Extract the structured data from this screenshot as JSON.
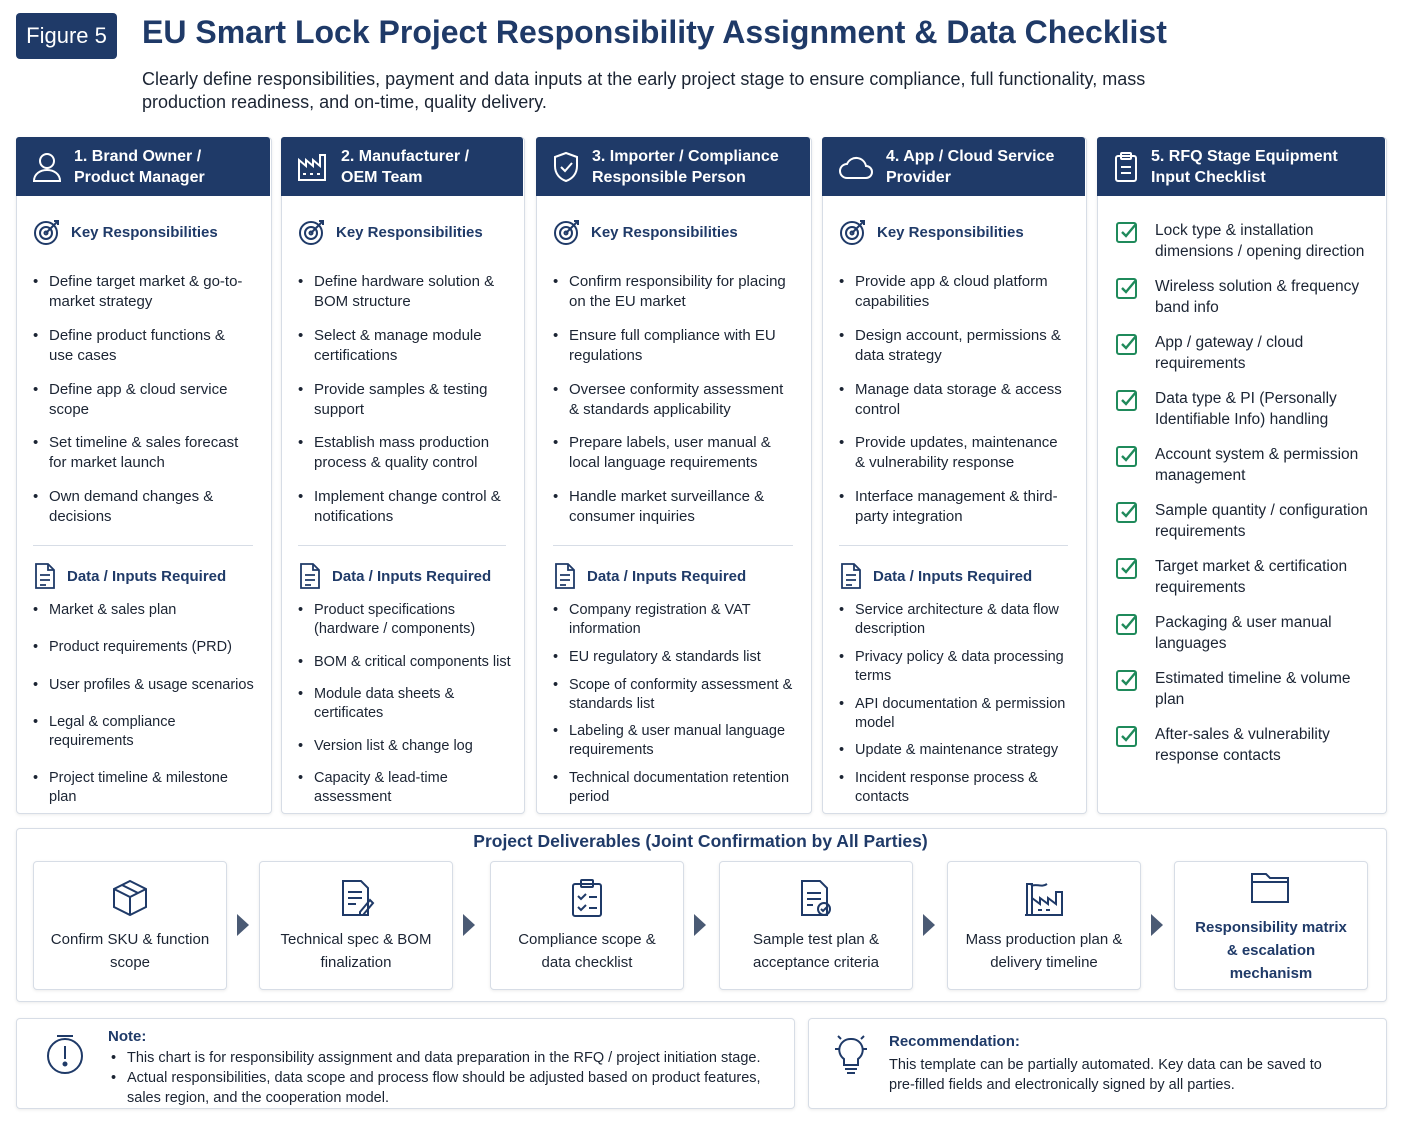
{
  "header": {
    "badge": "Figure 5",
    "title": "EU Smart Lock Project Responsibility Assignment & Data Checklist",
    "subtitle": "Clearly define responsibilities, payment and data inputs at the early project stage to ensure compliance, full functionality, mass production readiness, and on-time, quality delivery."
  },
  "columns": [
    {
      "title": "1. Brand Owner / Product Manager",
      "responsibilities_heading": "Key Responsibilities",
      "responsibilities": [
        "Define target market & go-to-market strategy",
        "Define product functions & use cases",
        "Define app & cloud service scope",
        "Set timeline & sales forecast for market launch",
        "Own demand changes & decisions"
      ],
      "data_heading": "Data / Inputs Required",
      "data": [
        "Market & sales plan",
        "Product requirements (PRD)",
        "User profiles & usage scenarios",
        "Legal & compliance requirements",
        "Project timeline & milestone plan"
      ]
    },
    {
      "title": "2. Manufacturer / OEM Team",
      "responsibilities_heading": "Key Responsibilities",
      "responsibilities": [
        "Define hardware solution & BOM structure",
        "Select & manage module certifications",
        "Provide samples & testing support",
        "Establish mass production process & quality control",
        "Implement change control & notifications"
      ],
      "data_heading": "Data / Inputs Required",
      "data": [
        "Product specifications (hardware / components)",
        "BOM & critical components list",
        "Module data sheets & certificates",
        "Version list & change log",
        "Capacity & lead-time assessment"
      ]
    },
    {
      "title": "3. Importer / Compliance Responsible Person",
      "responsibilities_heading": "Key Responsibilities",
      "responsibilities": [
        "Confirm responsibility for placing on the EU market",
        "Ensure full compliance with EU regulations",
        "Oversee conformity assessment & standards applicability",
        "Prepare labels, user manual & local language requirements",
        "Handle market surveillance & consumer inquiries"
      ],
      "data_heading": "Data / Inputs Required",
      "data": [
        "Company registration & VAT information",
        "EU regulatory & standards list",
        "Scope of conformity assessment & standards list",
        "Labeling & user manual language requirements",
        "Technical documentation retention period"
      ]
    },
    {
      "title": "4. App / Cloud Service Provider",
      "responsibilities_heading": "Key Responsibilities",
      "responsibilities": [
        "Provide app & cloud platform capabilities",
        "Design account, permissions & data strategy",
        "Manage data storage & access control",
        "Provide updates, maintenance & vulnerability response",
        "Interface management & third-party integration"
      ],
      "data_heading": "Data / Inputs Required",
      "data": [
        "Service architecture & data flow description",
        "Privacy policy & data processing terms",
        "API documentation & permission model",
        "Update & maintenance strategy",
        "Incident response process & contacts"
      ]
    }
  ],
  "checklist": {
    "title": "5. RFQ Stage Equipment Input Checklist",
    "items": [
      "Lock type & installation dimensions / opening direction",
      "Wireless solution & frequency band info",
      "App / gateway / cloud requirements",
      "Data type & PI (Personally Identifiable Info) handling",
      "Account system & permission management",
      "Sample quantity / configuration requirements",
      "Target market & certification requirements",
      "Packaging & user manual languages",
      "Estimated timeline & volume plan",
      "After-sales & vulnerability response contacts"
    ]
  },
  "deliverables": {
    "title": "Project Deliverables (Joint Confirmation by All Parties)",
    "steps": [
      "Confirm SKU & function scope",
      "Technical spec & BOM finalization",
      "Compliance scope & data checklist",
      "Sample test plan & acceptance criteria",
      "Mass production plan & delivery timeline",
      "Responsibility matrix & escalation mechanism"
    ]
  },
  "note": {
    "heading": "Note:",
    "items": [
      "This chart is for responsibility assignment and data preparation in the RFQ / project initiation stage.",
      "Actual responsibilities, data scope and process flow should be adjusted based on product features, sales region, and the cooperation model."
    ]
  },
  "recommendation": {
    "heading": "Recommendation:",
    "text": "This template can be partially automated. Key data can be saved to pre-filled fields and electronically signed by all parties."
  }
}
